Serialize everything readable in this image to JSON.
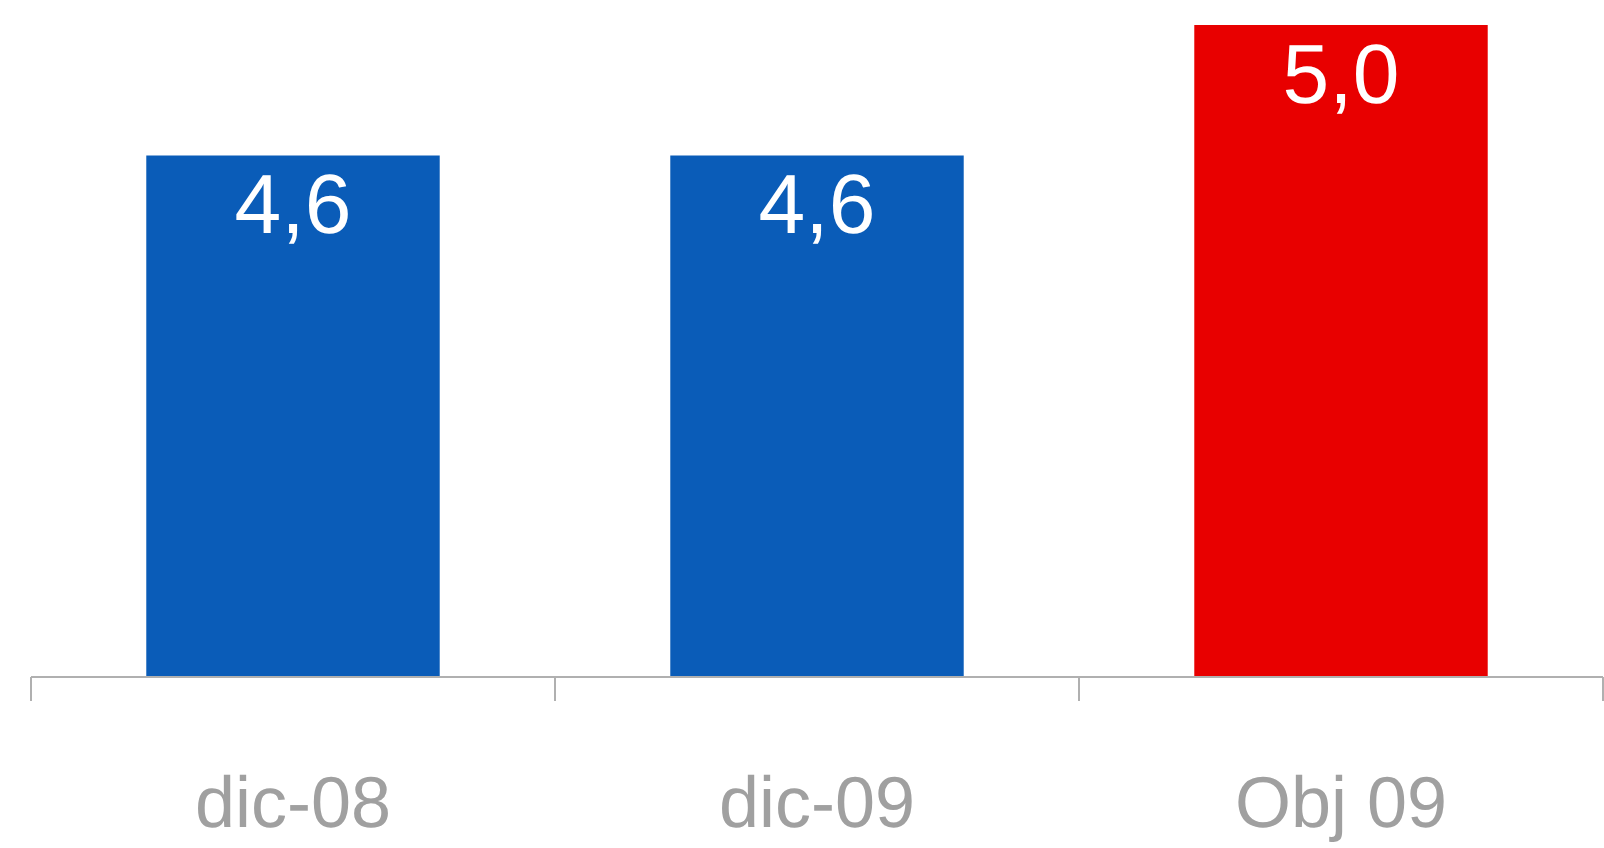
{
  "chart_data": {
    "type": "bar",
    "categories": [
      "dic-08",
      "dic-09",
      "Obj 09"
    ],
    "values": [
      4.6,
      4.6,
      5.0
    ],
    "colors": [
      "#0a5cb8",
      "#0a5cb8",
      "#e80000"
    ],
    "value_labels": [
      "4,6",
      "4,6",
      "5,0"
    ],
    "ylim": [
      3.0,
      5.0
    ],
    "grid": false,
    "tick_labels": "x"
  }
}
